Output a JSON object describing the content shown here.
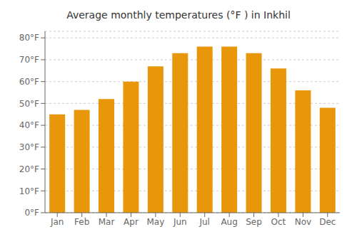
{
  "chart_data": {
    "type": "bar",
    "title": "Average monthly temperatures (°F ) in Inkhil",
    "categories": [
      "Jan",
      "Feb",
      "Mar",
      "Apr",
      "May",
      "Jun",
      "Jul",
      "Aug",
      "Sep",
      "Oct",
      "Nov",
      "Dec"
    ],
    "values": [
      45,
      47,
      52,
      60,
      67,
      73,
      76,
      76,
      73,
      66,
      56,
      48
    ],
    "color": "#E8960A",
    "ylim": [
      0,
      83
    ],
    "yticks": [
      {
        "value": 0,
        "label": "0°F"
      },
      {
        "value": 10,
        "label": "10°F"
      },
      {
        "value": 20,
        "label": "20°F"
      },
      {
        "value": 30,
        "label": "30°F"
      },
      {
        "value": 40,
        "label": "40°F"
      },
      {
        "value": 50,
        "label": "50°F"
      },
      {
        "value": 60,
        "label": "60°F"
      },
      {
        "value": 70,
        "label": "70°F"
      },
      {
        "value": 80,
        "label": "80°F"
      }
    ],
    "grid": true
  }
}
